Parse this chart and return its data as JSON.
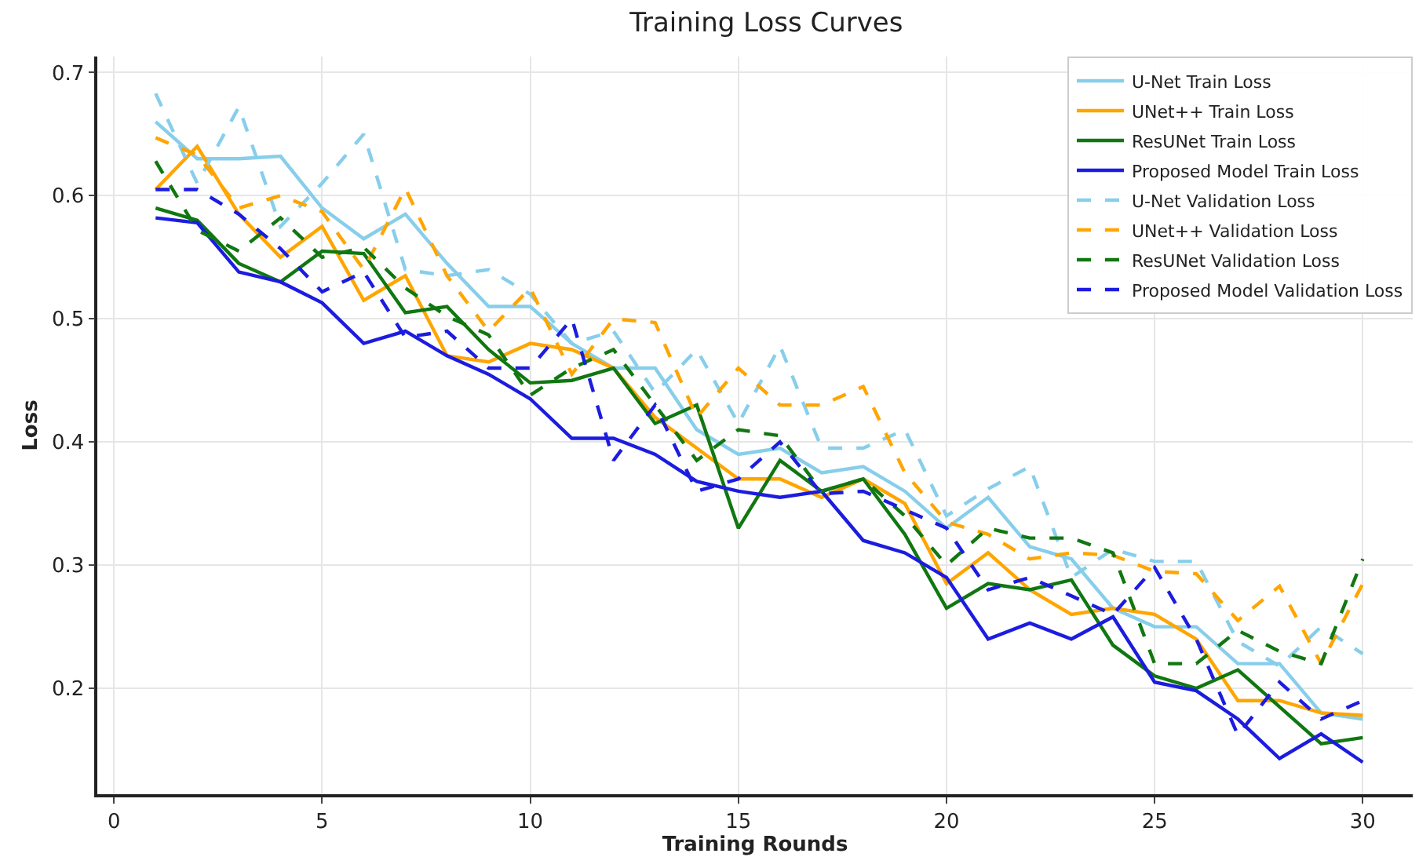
{
  "chart_data": {
    "type": "line",
    "title": "Training Loss Curves",
    "xlabel": "Training Rounds",
    "ylabel": "Loss",
    "x": [
      1,
      2,
      3,
      4,
      5,
      6,
      7,
      8,
      9,
      10,
      11,
      12,
      13,
      14,
      15,
      16,
      17,
      18,
      19,
      20,
      21,
      22,
      23,
      24,
      25,
      26,
      27,
      28,
      29,
      30
    ],
    "xlim": [
      -0.4,
      31.2
    ],
    "xticks": [
      0,
      5,
      10,
      15,
      20,
      25,
      30
    ],
    "ylim": [
      0.114,
      0.713
    ],
    "yticks": [
      0.2,
      0.3,
      0.4,
      0.5,
      0.6,
      0.7
    ],
    "grid": true,
    "legend": "top right",
    "marker": "none",
    "series": [
      {
        "name": "U-Net Train Loss",
        "color": "#87ceeb",
        "line_style": "solid",
        "values": [
          0.66,
          0.63,
          0.63,
          0.632,
          0.59,
          0.565,
          0.585,
          0.545,
          0.51,
          0.51,
          0.48,
          0.46,
          0.46,
          0.41,
          0.39,
          0.395,
          0.375,
          0.38,
          0.36,
          0.33,
          0.355,
          0.315,
          0.305,
          0.265,
          0.25,
          0.25,
          0.22,
          0.22,
          0.18,
          0.175
        ]
      },
      {
        "name": "UNet++ Train Loss",
        "color": "#ffa500",
        "line_style": "solid",
        "values": [
          0.605,
          0.64,
          0.585,
          0.55,
          0.575,
          0.515,
          0.535,
          0.47,
          0.465,
          0.48,
          0.475,
          0.46,
          0.42,
          0.395,
          0.37,
          0.37,
          0.355,
          0.37,
          0.35,
          0.285,
          0.31,
          0.28,
          0.26,
          0.265,
          0.26,
          0.24,
          0.19,
          0.19,
          0.18,
          0.178
        ]
      },
      {
        "name": "ResUNet Train Loss",
        "color": "#117711",
        "line_style": "solid",
        "values": [
          0.59,
          0.58,
          0.545,
          0.53,
          0.555,
          0.553,
          0.505,
          0.51,
          0.475,
          0.448,
          0.45,
          0.46,
          0.415,
          0.43,
          0.33,
          0.385,
          0.36,
          0.37,
          0.325,
          0.265,
          0.285,
          0.28,
          0.288,
          0.235,
          0.21,
          0.2,
          0.215,
          0.185,
          0.155,
          0.16
        ]
      },
      {
        "name": "Proposed Model Train Loss",
        "color": "#1c1ce0",
        "line_style": "solid",
        "values": [
          0.582,
          0.578,
          0.538,
          0.53,
          0.513,
          0.48,
          0.49,
          0.47,
          0.455,
          0.435,
          0.403,
          0.403,
          0.39,
          0.368,
          0.36,
          0.355,
          0.36,
          0.32,
          0.31,
          0.29,
          0.24,
          0.253,
          0.24,
          0.258,
          0.205,
          0.198,
          0.175,
          0.143,
          0.163,
          0.14
        ]
      },
      {
        "name": "U-Net Validation Loss",
        "color": "#87ceeb",
        "line_style": "dashed",
        "values": [
          0.683,
          0.61,
          0.672,
          0.575,
          0.61,
          0.65,
          0.54,
          0.535,
          0.54,
          0.52,
          0.48,
          0.49,
          0.44,
          0.475,
          0.415,
          0.478,
          0.395,
          0.395,
          0.41,
          0.34,
          0.362,
          0.38,
          0.29,
          0.313,
          0.303,
          0.303,
          0.238,
          0.218,
          0.25,
          0.228
        ]
      },
      {
        "name": "UNet++ Validation Loss",
        "color": "#ffa500",
        "line_style": "dashed",
        "values": [
          0.647,
          0.633,
          0.59,
          0.6,
          0.587,
          0.54,
          0.606,
          0.535,
          0.49,
          0.525,
          0.455,
          0.5,
          0.497,
          0.42,
          0.46,
          0.43,
          0.43,
          0.445,
          0.375,
          0.335,
          0.325,
          0.305,
          0.31,
          0.308,
          0.295,
          0.293,
          0.255,
          0.283,
          0.22,
          0.285
        ]
      },
      {
        "name": "ResUNet Validation Loss",
        "color": "#117711",
        "line_style": "dashed",
        "values": [
          0.628,
          0.572,
          0.555,
          0.582,
          0.55,
          0.558,
          0.525,
          0.502,
          0.487,
          0.438,
          0.46,
          0.475,
          0.43,
          0.385,
          0.41,
          0.405,
          0.36,
          0.37,
          0.34,
          0.3,
          0.33,
          0.322,
          0.322,
          0.31,
          0.22,
          0.22,
          0.247,
          0.23,
          0.22,
          0.305
        ]
      },
      {
        "name": "Proposed Model Validation Loss",
        "color": "#1c1ce0",
        "line_style": "dashed",
        "values": [
          0.605,
          0.605,
          0.585,
          0.557,
          0.522,
          0.538,
          0.485,
          0.49,
          0.46,
          0.46,
          0.5,
          0.385,
          0.43,
          0.36,
          0.37,
          0.4,
          0.358,
          0.36,
          0.345,
          0.33,
          0.28,
          0.29,
          0.275,
          0.26,
          0.298,
          0.24,
          0.162,
          0.205,
          0.175,
          0.19
        ]
      }
    ]
  }
}
